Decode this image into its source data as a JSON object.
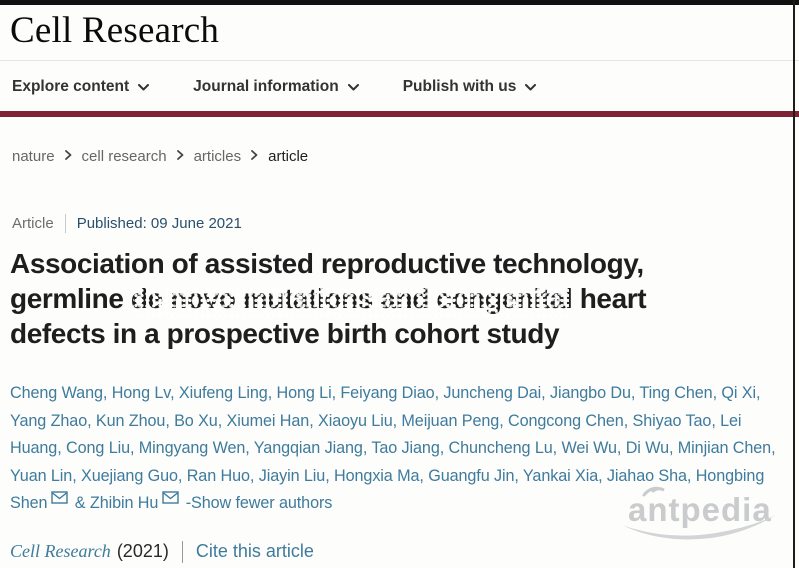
{
  "header": {
    "journal_title": "Cell Research"
  },
  "nav": {
    "items": [
      {
        "label": "Explore content"
      },
      {
        "label": "Journal information"
      },
      {
        "label": "Publish with us"
      }
    ]
  },
  "breadcrumb": {
    "items": [
      "nature",
      "cell research",
      "articles",
      "article"
    ]
  },
  "article": {
    "type_label": "Article",
    "published_label": "Published: 09 June 2021",
    "title": "Association of assisted reproductive technology, germline de novo mutations and congenital heart defects in a prospective birth cohort study",
    "title_lines": {
      "l1": "Association of assisted reproductive technology,",
      "l2": "germline de novo mutations and congenital heart",
      "l3": "defects in a prospective birth cohort study"
    },
    "authors": [
      {
        "name": "Cheng Wang"
      },
      {
        "name": "Hong Lv"
      },
      {
        "name": "Xiufeng Ling"
      },
      {
        "name": "Hong Li"
      },
      {
        "name": "Feiyang Diao"
      },
      {
        "name": "Juncheng Dai"
      },
      {
        "name": "Jiangbo Du"
      },
      {
        "name": "Ting Chen"
      },
      {
        "name": "Qi Xi"
      },
      {
        "name": "Yang Zhao"
      },
      {
        "name": "Kun Zhou"
      },
      {
        "name": "Bo Xu"
      },
      {
        "name": "Xiumei Han"
      },
      {
        "name": "Xiaoyu Liu"
      },
      {
        "name": "Meijuan Peng"
      },
      {
        "name": "Congcong Chen"
      },
      {
        "name": "Shiyao Tao"
      },
      {
        "name": "Lei Huang"
      },
      {
        "name": "Cong Liu"
      },
      {
        "name": "Mingyang Wen"
      },
      {
        "name": "Yangqian Jiang"
      },
      {
        "name": "Tao Jiang"
      },
      {
        "name": "Chuncheng Lu"
      },
      {
        "name": "Wei Wu"
      },
      {
        "name": "Di Wu"
      },
      {
        "name": "Minjian Chen"
      },
      {
        "name": "Yuan Lin"
      },
      {
        "name": "Xuejiang Guo"
      },
      {
        "name": "Ran Huo"
      },
      {
        "name": "Jiayin Liu"
      },
      {
        "name": "Hongxia Ma"
      },
      {
        "name": "Guangfu Jin"
      },
      {
        "name": "Yankai Xia"
      },
      {
        "name": "Jiahao Sha"
      },
      {
        "name": "Hongbing Shen",
        "email": true
      },
      {
        "name": "Zhibin Hu",
        "email": true
      }
    ],
    "show_fewer_label": "-Show fewer authors",
    "citation": {
      "journal": "Cell Research",
      "year": "(2021)",
      "cite_link": "Cite this article"
    }
  },
  "watermark": {
    "text": "antpedia"
  },
  "colors": {
    "maroon_bar": "#7d2333",
    "link_teal": "#3e7b9c",
    "published_blue": "#29506d",
    "title_text": "#1e1e1e",
    "breadcrumb_gray": "#666666",
    "watermark_gray": "#c9cbcd"
  }
}
